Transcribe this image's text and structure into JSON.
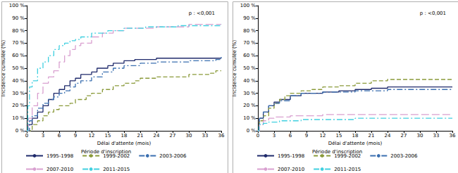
{
  "chart_data": [
    {
      "type": "step",
      "annotation": "p : <0,001",
      "x_label": "Délai d'attente (mois)",
      "y_label": "Incidence cumulée (%)",
      "legend_title": "Période d'inscription",
      "legend": "bottom",
      "grid": false,
      "xlim": [
        0,
        36
      ],
      "xticks": [
        0,
        3,
        6,
        9,
        12,
        15,
        18,
        21,
        24,
        27,
        30,
        33,
        36
      ],
      "ylim": [
        0,
        100
      ],
      "yticks": [
        {
          "value": 0,
          "label": "0 %"
        },
        {
          "value": 10,
          "label": "10 %"
        },
        {
          "value": 20,
          "label": "20 %"
        },
        {
          "value": 30,
          "label": "30 %"
        },
        {
          "value": 40,
          "label": "40 %"
        },
        {
          "value": 50,
          "label": "50 %"
        },
        {
          "value": 60,
          "label": "60 %"
        },
        {
          "value": 70,
          "label": "70 %"
        },
        {
          "value": 80,
          "label": "80 %"
        },
        {
          "value": 90,
          "label": "90 %"
        },
        {
          "value": 100,
          "label": "100 %"
        }
      ],
      "series": [
        {
          "name": "1995-1998",
          "color": "#1f2a6b",
          "line_style": "solid",
          "x": [
            0,
            0.3,
            1,
            2,
            3,
            4,
            5,
            6,
            7,
            8,
            9,
            10,
            12,
            13,
            15,
            16,
            18,
            20,
            24,
            36
          ],
          "values": [
            0,
            5,
            10,
            15,
            20,
            25,
            30,
            33,
            36,
            40,
            42,
            45,
            47,
            50,
            52,
            54,
            56,
            57,
            58,
            58
          ]
        },
        {
          "name": "1999-2002",
          "color": "#8a9a3a",
          "line_style": "dashed",
          "x": [
            0,
            1,
            2,
            3,
            4,
            5,
            6,
            8,
            9,
            11,
            12,
            14,
            16,
            18,
            20,
            21,
            24,
            30,
            34,
            35,
            36
          ],
          "values": [
            0,
            5,
            8,
            12,
            15,
            17,
            20,
            22,
            25,
            28,
            30,
            33,
            36,
            38,
            40,
            42,
            43,
            45,
            46,
            48,
            48
          ]
        },
        {
          "name": "2003-2006",
          "color": "#3a6fb0",
          "line_style": "dashdot",
          "x": [
            0,
            0.5,
            1,
            2,
            3,
            4,
            5,
            6,
            7,
            8,
            9,
            10,
            12,
            14,
            16,
            18,
            21,
            24,
            30,
            35,
            36
          ],
          "values": [
            0,
            8,
            12,
            18,
            22,
            25,
            27,
            30,
            32,
            35,
            38,
            40,
            43,
            47,
            50,
            52,
            54,
            55,
            56,
            57,
            60
          ]
        },
        {
          "name": "2007-2010",
          "color": "#d9a0d0",
          "line_style": "longdash",
          "x": [
            0,
            0.3,
            1,
            2,
            3,
            4,
            5,
            6,
            7,
            8,
            9,
            10,
            12,
            14,
            16,
            18,
            24,
            30,
            36
          ],
          "values": [
            0,
            10,
            20,
            30,
            38,
            43,
            48,
            55,
            60,
            65,
            68,
            70,
            75,
            78,
            80,
            82,
            83,
            85,
            85
          ]
        },
        {
          "name": "2011-2015",
          "color": "#40d0e0",
          "line_style": "dashdot",
          "x": [
            0,
            0.2,
            0.5,
            1,
            2,
            3,
            4,
            5,
            6,
            7,
            8,
            9,
            10,
            12,
            15,
            18,
            22,
            28,
            36
          ],
          "values": [
            0,
            20,
            35,
            40,
            50,
            55,
            60,
            65,
            68,
            70,
            72,
            73,
            75,
            78,
            80,
            82,
            83,
            84,
            85
          ]
        }
      ]
    },
    {
      "type": "step",
      "annotation": "p : <0,001",
      "x_label": "Délai d'attente (mois)",
      "y_label": "Incidence cumulée (%)",
      "legend_title": "Période d'inscription",
      "legend": "bottom",
      "grid": false,
      "xlim": [
        0,
        36
      ],
      "xticks": [
        0,
        3,
        6,
        9,
        12,
        15,
        18,
        21,
        24,
        27,
        30,
        33,
        36
      ],
      "ylim": [
        0,
        100
      ],
      "yticks": [
        {
          "value": 0,
          "label": "0 %"
        },
        {
          "value": 10,
          "label": "10 %"
        },
        {
          "value": 20,
          "label": "20 %"
        },
        {
          "value": 30,
          "label": "30 %"
        },
        {
          "value": 40,
          "label": "40 %"
        },
        {
          "value": 50,
          "label": "50 %"
        },
        {
          "value": 60,
          "label": "60 %"
        },
        {
          "value": 70,
          "label": "70 %"
        },
        {
          "value": 80,
          "label": "80 %"
        },
        {
          "value": 90,
          "label": "90 %"
        },
        {
          "value": 100,
          "label": "100 %"
        }
      ],
      "series": [
        {
          "name": "1995-1998",
          "color": "#1f2a6b",
          "line_style": "solid",
          "x": [
            0,
            0.3,
            1,
            2,
            3,
            4,
            6,
            8,
            12,
            15,
            18,
            21,
            24,
            36
          ],
          "values": [
            0,
            10,
            15,
            20,
            23,
            25,
            28,
            30,
            31,
            32,
            33,
            34,
            35,
            35
          ]
        },
        {
          "name": "1999-2002",
          "color": "#8a9a3a",
          "line_style": "dashed",
          "x": [
            0,
            0.3,
            1,
            2,
            3,
            4,
            5,
            6,
            8,
            10,
            12,
            15,
            18,
            21,
            24,
            36
          ],
          "values": [
            0,
            8,
            12,
            18,
            22,
            25,
            28,
            30,
            32,
            33,
            35,
            36,
            38,
            40,
            41,
            41
          ]
        },
        {
          "name": "2003-2006",
          "color": "#3a6fb0",
          "line_style": "dashdot",
          "x": [
            0,
            0.3,
            1,
            2,
            3,
            4,
            6,
            8,
            12,
            15,
            18,
            24,
            36
          ],
          "values": [
            0,
            10,
            15,
            20,
            22,
            24,
            28,
            30,
            31,
            31,
            32,
            33,
            33
          ]
        },
        {
          "name": "2007-2010",
          "color": "#d9a0d0",
          "line_style": "longdash",
          "x": [
            0,
            0.3,
            1,
            2,
            3,
            6,
            12,
            36
          ],
          "values": [
            0,
            5,
            8,
            10,
            11,
            12,
            13,
            13
          ]
        },
        {
          "name": "2011-2015",
          "color": "#40d0e0",
          "line_style": "dashdot",
          "x": [
            0,
            0.2,
            1,
            2,
            4,
            8,
            12,
            18,
            36
          ],
          "values": [
            0,
            5,
            6,
            7,
            8,
            9,
            9,
            10,
            10
          ]
        }
      ]
    }
  ]
}
